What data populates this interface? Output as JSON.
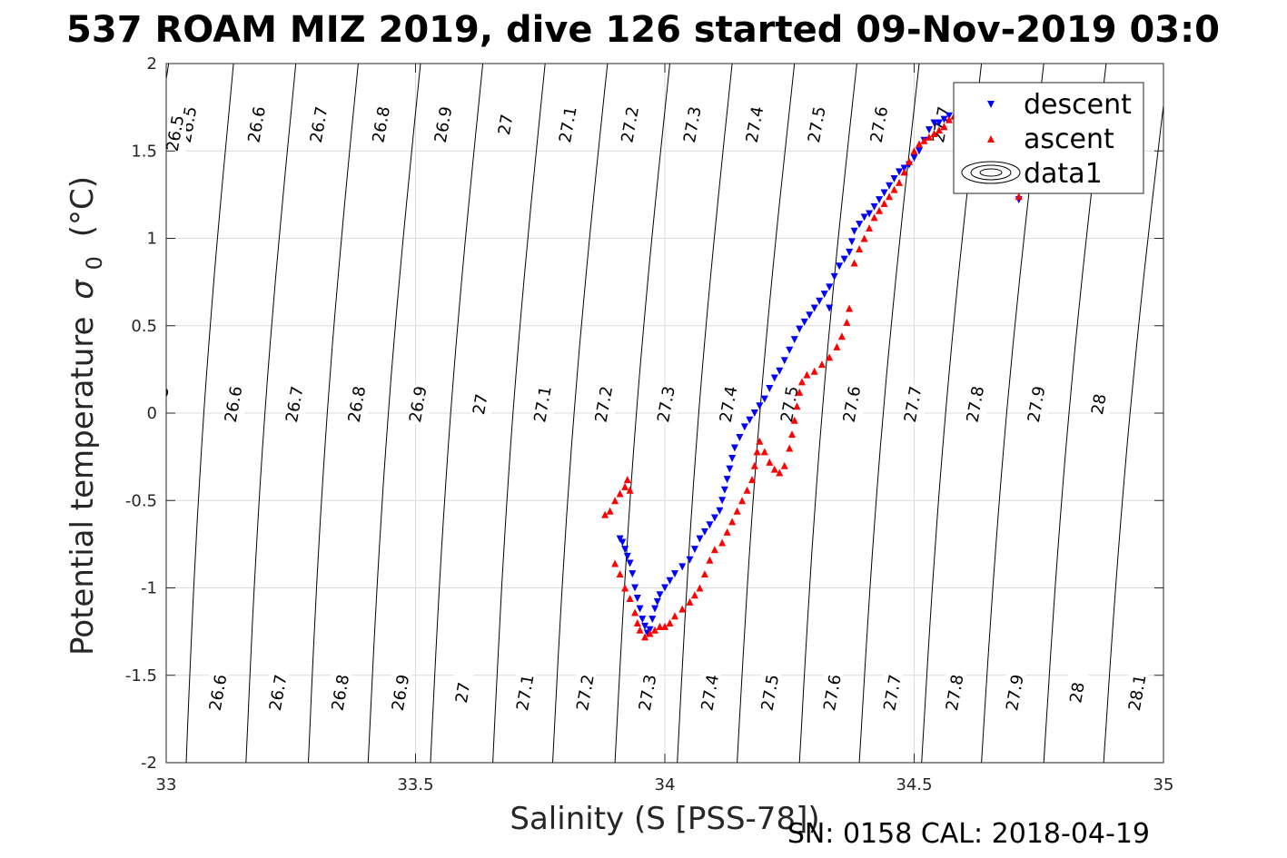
{
  "chart_data": {
    "type": "scatter",
    "title": "537 ROAM MIZ 2019, dive 126 started 09-Nov-2019 03:0",
    "xlabel": "Salinity (S [PSS-78])",
    "ylabel": "Potential temperature",
    "ylabel_greek": "σ",
    "ylabel_sub": "0",
    "ylabel_unit": "(°C)",
    "footer": "SN: 0158  CAL: 2018-04-19",
    "xlim": [
      33,
      35
    ],
    "ylim": [
      -2,
      2
    ],
    "xticks": [
      33,
      33.5,
      34,
      34.5,
      35
    ],
    "xtick_labels": [
      "33",
      "33.5",
      "34",
      "34.5",
      "35"
    ],
    "yticks": [
      -2,
      -1.5,
      -1,
      -0.5,
      0,
      0.5,
      1,
      1.5,
      2
    ],
    "ytick_labels": [
      "-2",
      "-1.5",
      "-1",
      "-0.5",
      "0",
      "0.5",
      "1",
      "1.5",
      "2"
    ],
    "grid": true,
    "legend_placement": "top-right",
    "legend": [
      "descent",
      "ascent",
      "data1"
    ],
    "colors": {
      "descent": "#0000ff",
      "ascent": "#ff0000",
      "contour": "#000000",
      "grid": "#dcdcdc"
    },
    "contours": [
      {
        "label": "26.5",
        "x_top": 33.005,
        "x_bottom": 32.82
      },
      {
        "label": "26.6",
        "x_top": 33.135,
        "x_bottom": 33.04
      },
      {
        "label": "26.7",
        "x_top": 33.26,
        "x_bottom": 33.16
      },
      {
        "label": "26.8",
        "x_top": 33.385,
        "x_bottom": 33.285
      },
      {
        "label": "26.9",
        "x_top": 33.51,
        "x_bottom": 33.405
      },
      {
        "label": "27",
        "x_top": 33.635,
        "x_bottom": 33.53
      },
      {
        "label": "27.1",
        "x_top": 33.76,
        "x_bottom": 33.655
      },
      {
        "label": "27.2",
        "x_top": 33.885,
        "x_bottom": 33.775
      },
      {
        "label": "27.3",
        "x_top": 34.01,
        "x_bottom": 33.9
      },
      {
        "label": "27.4",
        "x_top": 34.135,
        "x_bottom": 34.025
      },
      {
        "label": "27.5",
        "x_top": 34.26,
        "x_bottom": 34.145
      },
      {
        "label": "27.6",
        "x_top": 34.385,
        "x_bottom": 34.27
      },
      {
        "label": "27.7",
        "x_top": 34.51,
        "x_bottom": 34.39
      },
      {
        "label": "27.8",
        "x_top": 34.635,
        "x_bottom": 34.515
      },
      {
        "label": "27.9",
        "x_top": 34.76,
        "x_bottom": 34.635
      },
      {
        "label": "28",
        "x_top": 34.885,
        "x_bottom": 34.76
      },
      {
        "label": "28.1",
        "x_top": 35.01,
        "x_bottom": 34.88
      }
    ],
    "contour_labels_left": [
      {
        "label": "26.5",
        "x": 33.02,
        "y": 1.6
      },
      {
        "label": "26.5",
        "x": 32.99,
        "y": 0.05
      }
    ],
    "series": [
      {
        "name": "descent",
        "marker": "triangle-down",
        "points": [
          [
            33.91,
            -0.72
          ],
          [
            33.915,
            -0.74
          ],
          [
            33.92,
            -0.78
          ],
          [
            33.925,
            -0.82
          ],
          [
            33.93,
            -0.86
          ],
          [
            33.935,
            -0.92
          ],
          [
            33.94,
            -1.0
          ],
          [
            33.945,
            -1.06
          ],
          [
            33.95,
            -1.12
          ],
          [
            33.955,
            -1.18
          ],
          [
            33.96,
            -1.22
          ],
          [
            33.965,
            -1.26
          ],
          [
            33.97,
            -1.24
          ],
          [
            33.975,
            -1.18
          ],
          [
            33.98,
            -1.12
          ],
          [
            33.985,
            -1.08
          ],
          [
            33.99,
            -1.04
          ],
          [
            34.0,
            -1.0
          ],
          [
            34.01,
            -0.96
          ],
          [
            34.02,
            -0.92
          ],
          [
            34.035,
            -0.88
          ],
          [
            34.05,
            -0.84
          ],
          [
            34.06,
            -0.78
          ],
          [
            34.07,
            -0.72
          ],
          [
            34.08,
            -0.68
          ],
          [
            34.09,
            -0.64
          ],
          [
            34.1,
            -0.6
          ],
          [
            34.11,
            -0.56
          ],
          [
            34.115,
            -0.5
          ],
          [
            34.12,
            -0.44
          ],
          [
            34.125,
            -0.38
          ],
          [
            34.13,
            -0.32
          ],
          [
            34.135,
            -0.26
          ],
          [
            34.14,
            -0.2
          ],
          [
            34.15,
            -0.14
          ],
          [
            34.16,
            -0.08
          ],
          [
            34.17,
            -0.04
          ],
          [
            34.18,
            0.0
          ],
          [
            34.19,
            0.04
          ],
          [
            34.2,
            0.08
          ],
          [
            34.21,
            0.14
          ],
          [
            34.22,
            0.2
          ],
          [
            34.23,
            0.24
          ],
          [
            34.24,
            0.3
          ],
          [
            34.25,
            0.36
          ],
          [
            34.26,
            0.42
          ],
          [
            34.27,
            0.48
          ],
          [
            34.28,
            0.52
          ],
          [
            34.29,
            0.56
          ],
          [
            34.3,
            0.6
          ],
          [
            34.31,
            0.64
          ],
          [
            34.32,
            0.68
          ],
          [
            34.33,
            0.72
          ],
          [
            34.34,
            0.78
          ],
          [
            34.35,
            0.84
          ],
          [
            34.36,
            0.88
          ],
          [
            34.37,
            0.92
          ],
          [
            34.375,
            0.98
          ],
          [
            34.38,
            1.04
          ],
          [
            34.39,
            1.08
          ],
          [
            34.4,
            1.12
          ],
          [
            34.41,
            1.14
          ],
          [
            34.42,
            1.18
          ],
          [
            34.43,
            1.22
          ],
          [
            34.44,
            1.26
          ],
          [
            34.45,
            1.3
          ],
          [
            34.46,
            1.34
          ],
          [
            34.47,
            1.38
          ],
          [
            34.48,
            1.4
          ],
          [
            34.49,
            1.42
          ],
          [
            34.5,
            1.46
          ],
          [
            34.51,
            1.5
          ],
          [
            34.52,
            1.56
          ],
          [
            34.53,
            1.62
          ],
          [
            34.54,
            1.66
          ],
          [
            34.55,
            1.66
          ],
          [
            34.56,
            1.68
          ],
          [
            34.57,
            1.7
          ],
          [
            34.71,
            1.22
          ],
          [
            34.33,
            0.6
          ]
        ]
      },
      {
        "name": "ascent",
        "marker": "triangle-up",
        "points": [
          [
            33.88,
            -0.58
          ],
          [
            33.89,
            -0.56
          ],
          [
            33.9,
            -0.5
          ],
          [
            33.91,
            -0.46
          ],
          [
            33.92,
            -0.42
          ],
          [
            33.925,
            -0.38
          ],
          [
            33.93,
            -0.44
          ],
          [
            33.9,
            -0.86
          ],
          [
            33.91,
            -0.92
          ],
          [
            33.92,
            -1.0
          ],
          [
            33.93,
            -1.06
          ],
          [
            33.94,
            -1.14
          ],
          [
            33.945,
            -1.2
          ],
          [
            33.95,
            -1.24
          ],
          [
            33.96,
            -1.28
          ],
          [
            33.97,
            -1.26
          ],
          [
            33.98,
            -1.24
          ],
          [
            33.99,
            -1.22
          ],
          [
            34.0,
            -1.22
          ],
          [
            34.01,
            -1.2
          ],
          [
            34.02,
            -1.16
          ],
          [
            34.035,
            -1.12
          ],
          [
            34.05,
            -1.08
          ],
          [
            34.06,
            -1.04
          ],
          [
            34.07,
            -1.0
          ],
          [
            34.08,
            -0.92
          ],
          [
            34.09,
            -0.84
          ],
          [
            34.1,
            -0.78
          ],
          [
            34.115,
            -0.74
          ],
          [
            34.125,
            -0.68
          ],
          [
            34.135,
            -0.62
          ],
          [
            34.145,
            -0.56
          ],
          [
            34.155,
            -0.5
          ],
          [
            34.165,
            -0.44
          ],
          [
            34.175,
            -0.38
          ],
          [
            34.18,
            -0.3
          ],
          [
            34.185,
            -0.22
          ],
          [
            34.19,
            -0.16
          ],
          [
            34.2,
            -0.22
          ],
          [
            34.21,
            -0.28
          ],
          [
            34.22,
            -0.32
          ],
          [
            34.23,
            -0.34
          ],
          [
            34.24,
            -0.3
          ],
          [
            34.25,
            -0.2
          ],
          [
            34.255,
            -0.12
          ],
          [
            34.26,
            -0.04
          ],
          [
            34.265,
            0.04
          ],
          [
            34.27,
            0.12
          ],
          [
            34.275,
            0.18
          ],
          [
            34.285,
            0.22
          ],
          [
            34.3,
            0.24
          ],
          [
            34.315,
            0.28
          ],
          [
            34.33,
            0.32
          ],
          [
            34.345,
            0.38
          ],
          [
            34.355,
            0.44
          ],
          [
            34.365,
            0.52
          ],
          [
            34.37,
            0.6
          ],
          [
            34.38,
            0.86
          ],
          [
            34.39,
            0.94
          ],
          [
            34.4,
            1.0
          ],
          [
            34.41,
            1.06
          ],
          [
            34.42,
            1.12
          ],
          [
            34.43,
            1.16
          ],
          [
            34.44,
            1.2
          ],
          [
            34.45,
            1.24
          ],
          [
            34.46,
            1.28
          ],
          [
            34.47,
            1.32
          ],
          [
            34.48,
            1.38
          ],
          [
            34.49,
            1.44
          ],
          [
            34.5,
            1.5
          ],
          [
            34.51,
            1.54
          ],
          [
            34.52,
            1.56
          ],
          [
            34.53,
            1.58
          ],
          [
            34.54,
            1.6
          ],
          [
            34.55,
            1.62
          ],
          [
            34.56,
            1.64
          ],
          [
            34.57,
            1.68
          ],
          [
            34.58,
            1.7
          ],
          [
            34.71,
            1.24
          ]
        ]
      }
    ]
  }
}
